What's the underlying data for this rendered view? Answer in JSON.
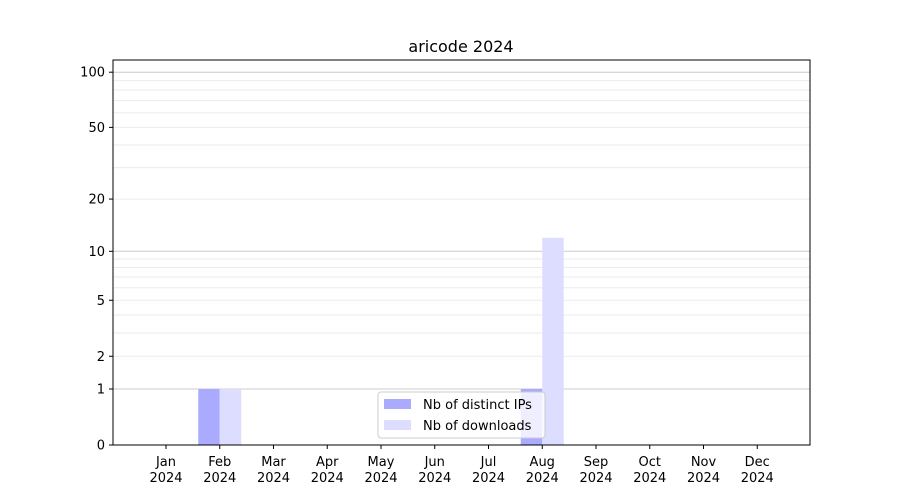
{
  "chart_data": {
    "type": "bar",
    "title": "aricode 2024",
    "xlabel": "",
    "ylabel": "",
    "y_scale": "log(1+y)",
    "ylim": [
      0,
      116
    ],
    "y_ticks": [
      0,
      1,
      2,
      5,
      10,
      20,
      50,
      100
    ],
    "y_tick_labels": [
      "0",
      "1",
      "2",
      "5",
      "10",
      "20",
      "50",
      "100"
    ],
    "grid": "horizontal major and minor",
    "legend_position": "bottom-center",
    "categories": [
      [
        "Jan",
        "2024"
      ],
      [
        "Feb",
        "2024"
      ],
      [
        "Mar",
        "2024"
      ],
      [
        "Apr",
        "2024"
      ],
      [
        "May",
        "2024"
      ],
      [
        "Jun",
        "2024"
      ],
      [
        "Jul",
        "2024"
      ],
      [
        "Aug",
        "2024"
      ],
      [
        "Sep",
        "2024"
      ],
      [
        "Oct",
        "2024"
      ],
      [
        "Nov",
        "2024"
      ],
      [
        "Dec",
        "2024"
      ]
    ],
    "series": [
      {
        "name": "Nb of distinct IPs",
        "color": "#aaaaff",
        "values": [
          0,
          1,
          0,
          0,
          0,
          0,
          0,
          1,
          0,
          0,
          0,
          0
        ]
      },
      {
        "name": "Nb of downloads",
        "color": "#ddddff",
        "values": [
          0,
          1,
          0,
          0,
          0,
          0,
          0,
          12,
          0,
          0,
          0,
          0
        ]
      }
    ]
  }
}
